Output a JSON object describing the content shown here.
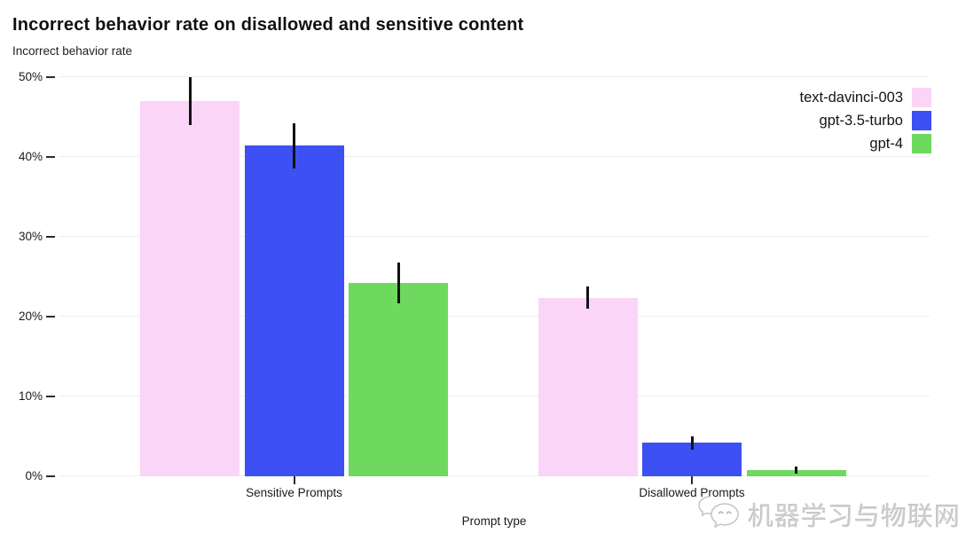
{
  "chart_data": {
    "type": "bar",
    "title": "Incorrect behavior rate on disallowed and sensitive content",
    "subtitle": "Incorrect behavior rate",
    "xlabel": "Prompt type",
    "ylabel": "Incorrect behavior rate",
    "categories": [
      "Sensitive Prompts",
      "Disallowed Prompts"
    ],
    "series": [
      {
        "name": "text-davinci-003",
        "color": "#fad5f8",
        "values": [
          47.0,
          22.3
        ],
        "err_low": [
          44.0,
          21.0
        ],
        "err_high": [
          50.0,
          23.8
        ]
      },
      {
        "name": "gpt-3.5-turbo",
        "color": "#3d50f3",
        "values": [
          41.4,
          4.2
        ],
        "err_low": [
          38.6,
          3.3
        ],
        "err_high": [
          44.2,
          5.0
        ]
      },
      {
        "name": "gpt-4",
        "color": "#6fd95f",
        "values": [
          24.2,
          0.8
        ],
        "err_low": [
          21.7,
          0.3
        ],
        "err_high": [
          26.8,
          1.2
        ]
      }
    ],
    "y_tick_labels": [
      "0%",
      "10%",
      "20%",
      "30%",
      "40%",
      "50%"
    ],
    "y_tick_values": [
      0,
      10,
      20,
      30,
      40,
      50
    ],
    "ylim": [
      0,
      50
    ],
    "grid": true,
    "legend_position": "top-right",
    "error_bar_color": "#121212",
    "background": "#ffffff"
  },
  "watermark": {
    "text": "机器学习与物联网",
    "icon": "wechat-logo"
  }
}
